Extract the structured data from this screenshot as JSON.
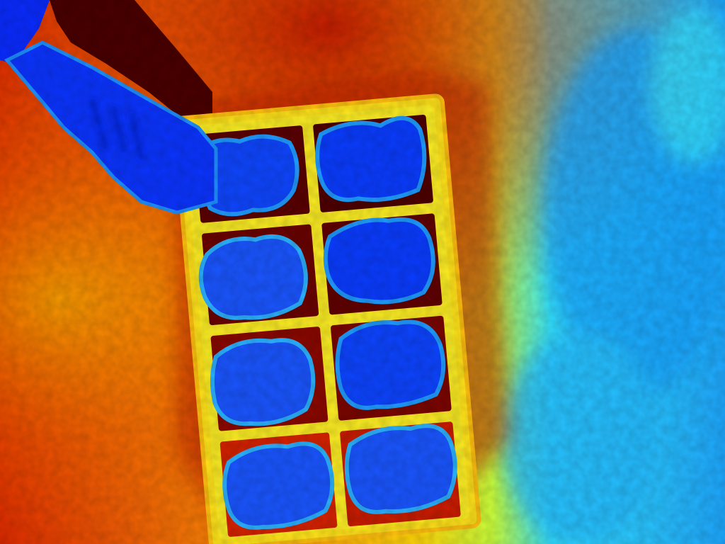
{
  "image": {
    "subject": "thermal-image-of-ice-cube-tray",
    "palette": "jet",
    "colors": {
      "hot_dark": "#5a0000",
      "hot": "#d42000",
      "warm": "#f37a05",
      "mid": "#ffd400",
      "yellow": "#f6f42a",
      "cool": "#2ce0ff",
      "cold": "#1a9bff",
      "coldest": "#0a3cff"
    },
    "cube_count": 8
  }
}
